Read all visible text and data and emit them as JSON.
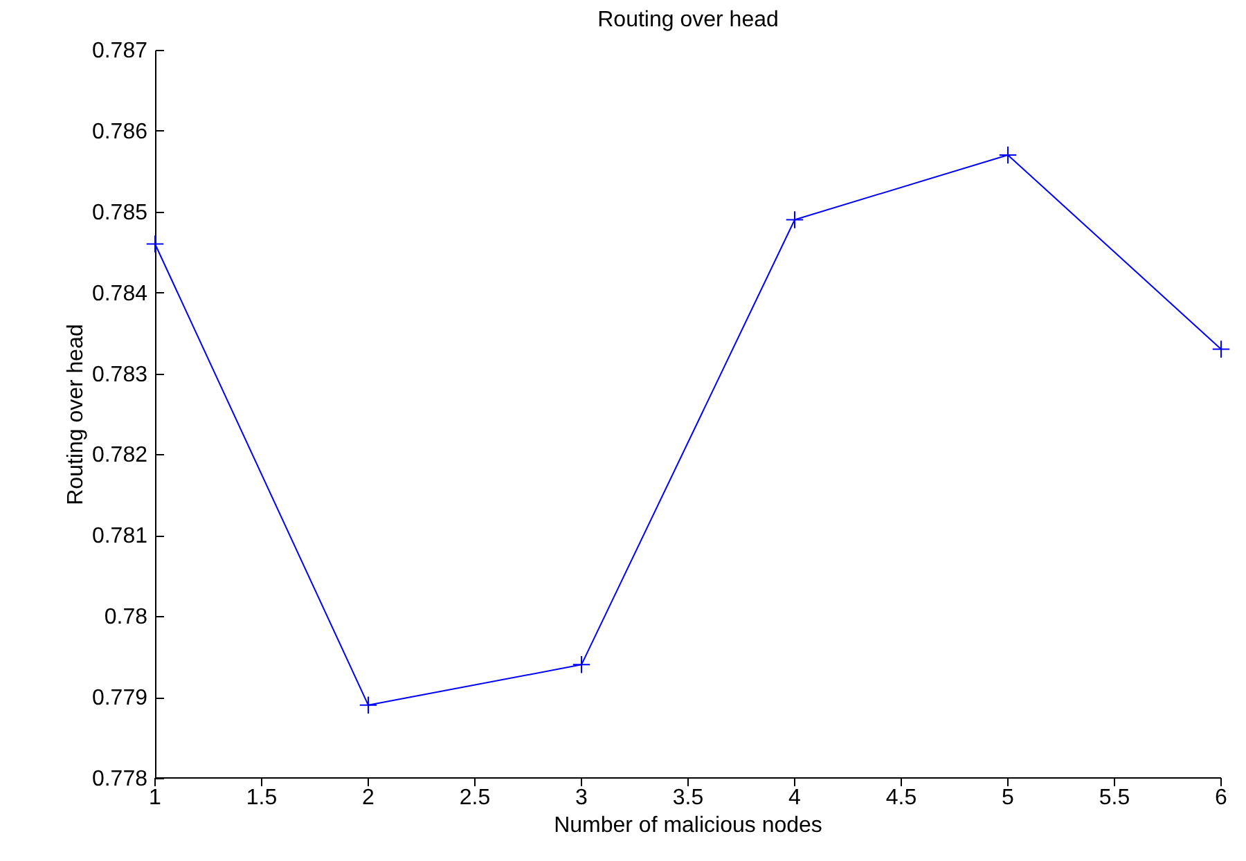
{
  "chart_data": {
    "type": "line",
    "title": "Routing over head",
    "xlabel": "Number of malicious nodes",
    "ylabel": "Routing over head",
    "x": [
      1,
      2,
      3,
      4,
      5,
      6
    ],
    "series": [
      {
        "color": "#0000ff",
        "values": [
          0.7846,
          0.7789,
          0.7794,
          0.7849,
          0.7857,
          0.7833
        ]
      }
    ],
    "xlim": [
      1,
      6
    ],
    "xticks": [
      1,
      1.5,
      2,
      2.5,
      3,
      3.5,
      4,
      4.5,
      5,
      5.5,
      6
    ],
    "ylim": [
      0.778,
      0.787
    ],
    "yticks": [
      0.778,
      0.779,
      0.78,
      0.781,
      0.782,
      0.783,
      0.784,
      0.785,
      0.786,
      0.787
    ],
    "grid": false,
    "marker": "cross",
    "line_style": "solid",
    "legend": false
  }
}
